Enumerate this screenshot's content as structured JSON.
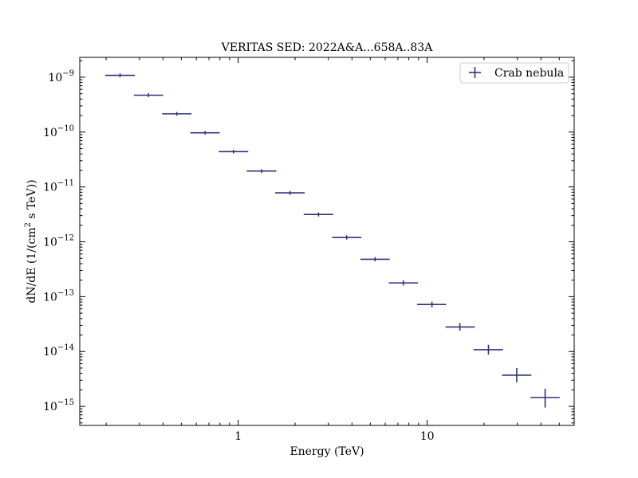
{
  "chart_data": {
    "type": "scatter",
    "title": "VERITAS SED: 2022A&A...658A..83A",
    "xlabel": "Energy (TeV)",
    "ylabel": {
      "prefix": "dN/dE (1/(cm",
      "superscript": "2",
      "suffix": " s TeV))"
    },
    "x_scale": "log",
    "y_scale": "log",
    "xlim": [
      0.145,
      60
    ],
    "ylim": [
      4.5e-16,
      2.3e-09
    ],
    "grid": false,
    "legend_position": "top-right",
    "x_tick_labels": [
      {
        "value": 1,
        "label": "1"
      },
      {
        "value": 10,
        "label": "10"
      }
    ],
    "y_tick_labels": [
      {
        "exponent": -9,
        "base": "10",
        "label": "−9"
      },
      {
        "exponent": -10,
        "base": "10",
        "label": "−10"
      },
      {
        "exponent": -11,
        "base": "10",
        "label": "−11"
      },
      {
        "exponent": -12,
        "base": "10",
        "label": "−12"
      },
      {
        "exponent": -13,
        "base": "10",
        "label": "−13"
      },
      {
        "exponent": -14,
        "base": "10",
        "label": "−14"
      },
      {
        "exponent": -15,
        "base": "10",
        "label": "−15"
      }
    ],
    "series": [
      {
        "name": "Crab nebula",
        "color": "#2e3478",
        "points": [
          {
            "x": 0.237,
            "x_lo": 0.198,
            "x_hi": 0.284,
            "y": 1.08e-09,
            "y_lo": 1e-09,
            "y_hi": 1.17e-09
          },
          {
            "x": 0.335,
            "x_lo": 0.28,
            "x_hi": 0.401,
            "y": 4.7e-10,
            "y_lo": 4.35e-10,
            "y_hi": 5.1e-10
          },
          {
            "x": 0.473,
            "x_lo": 0.396,
            "x_hi": 0.566,
            "y": 2.15e-10,
            "y_lo": 2e-10,
            "y_hi": 2.32e-10
          },
          {
            "x": 0.668,
            "x_lo": 0.558,
            "x_hi": 0.798,
            "y": 9.7e-11,
            "y_lo": 9e-11,
            "y_hi": 1.05e-10
          },
          {
            "x": 0.944,
            "x_lo": 0.79,
            "x_hi": 1.13,
            "y": 4.4e-11,
            "y_lo": 4.08e-11,
            "y_hi": 4.75e-11
          },
          {
            "x": 1.33,
            "x_lo": 1.11,
            "x_hi": 1.59,
            "y": 1.95e-11,
            "y_lo": 1.8e-11,
            "y_hi": 2.1e-11
          },
          {
            "x": 1.88,
            "x_lo": 1.57,
            "x_hi": 2.25,
            "y": 7.8e-12,
            "y_lo": 7.2e-12,
            "y_hi": 8.45e-12
          },
          {
            "x": 2.66,
            "x_lo": 2.22,
            "x_hi": 3.18,
            "y": 3.15e-12,
            "y_lo": 2.9e-12,
            "y_hi": 3.42e-12
          },
          {
            "x": 3.75,
            "x_lo": 3.14,
            "x_hi": 4.49,
            "y": 1.2e-12,
            "y_lo": 1.1e-12,
            "y_hi": 1.31e-12
          },
          {
            "x": 5.3,
            "x_lo": 4.43,
            "x_hi": 6.34,
            "y": 4.8e-13,
            "y_lo": 4.4e-13,
            "y_hi": 5.25e-13
          },
          {
            "x": 7.48,
            "x_lo": 6.26,
            "x_hi": 8.95,
            "y": 1.78e-13,
            "y_lo": 1.6e-13,
            "y_hi": 1.98e-13
          },
          {
            "x": 10.6,
            "x_lo": 8.84,
            "x_hi": 12.6,
            "y": 7.2e-14,
            "y_lo": 6.4e-14,
            "y_hi": 8.1e-14
          },
          {
            "x": 14.9,
            "x_lo": 12.5,
            "x_hi": 17.9,
            "y": 2.8e-14,
            "y_lo": 2.4e-14,
            "y_hi": 3.3e-14
          },
          {
            "x": 21.1,
            "x_lo": 17.6,
            "x_hi": 25.2,
            "y": 1.08e-14,
            "y_lo": 8.8e-15,
            "y_hi": 1.33e-14
          },
          {
            "x": 29.8,
            "x_lo": 24.9,
            "x_hi": 35.6,
            "y": 3.7e-15,
            "y_lo": 2.75e-15,
            "y_hi": 5e-15
          },
          {
            "x": 42.1,
            "x_lo": 35.2,
            "x_hi": 50.3,
            "y": 1.45e-15,
            "y_lo": 9.5e-16,
            "y_hi": 2.1e-15
          }
        ]
      }
    ]
  }
}
